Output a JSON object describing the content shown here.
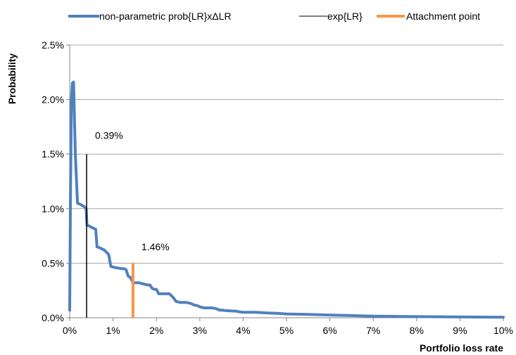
{
  "chart_data": {
    "type": "line",
    "xlabel": "Portfolio loss rate",
    "ylabel": "Probability",
    "xlim": [
      0,
      10
    ],
    "ylim": [
      0,
      2.5
    ],
    "x_ticks": [
      "0%",
      "1%",
      "2%",
      "3%",
      "4%",
      "5%",
      "6%",
      "7%",
      "8%",
      "9%",
      "10%"
    ],
    "y_ticks": [
      "0.0%",
      "0.5%",
      "1.0%",
      "1.5%",
      "2.0%",
      "2.5%"
    ],
    "grid": "horizontal",
    "legend_position": "top",
    "series": [
      {
        "name": "non-parametric prob{LR}xΔLR",
        "color": "#4f81bd",
        "points": [
          [
            0.0,
            0.07
          ],
          [
            0.02,
            1.2
          ],
          [
            0.04,
            2.0
          ],
          [
            0.06,
            2.15
          ],
          [
            0.09,
            2.16
          ],
          [
            0.13,
            1.5
          ],
          [
            0.18,
            1.05
          ],
          [
            0.24,
            1.04
          ],
          [
            0.33,
            1.02
          ],
          [
            0.38,
            1.0
          ],
          [
            0.4,
            0.85
          ],
          [
            0.45,
            0.84
          ],
          [
            0.5,
            0.83
          ],
          [
            0.55,
            0.82
          ],
          [
            0.6,
            0.81
          ],
          [
            0.63,
            0.65
          ],
          [
            0.7,
            0.64
          ],
          [
            0.8,
            0.62
          ],
          [
            0.85,
            0.6
          ],
          [
            0.9,
            0.58
          ],
          [
            0.95,
            0.47
          ],
          [
            1.05,
            0.46
          ],
          [
            1.2,
            0.45
          ],
          [
            1.25,
            0.45
          ],
          [
            1.3,
            0.44
          ],
          [
            1.35,
            0.38
          ],
          [
            1.4,
            0.37
          ],
          [
            1.45,
            0.33
          ],
          [
            1.5,
            0.32
          ],
          [
            1.6,
            0.32
          ],
          [
            1.7,
            0.31
          ],
          [
            1.8,
            0.3
          ],
          [
            1.85,
            0.3
          ],
          [
            1.9,
            0.27
          ],
          [
            1.95,
            0.26
          ],
          [
            2.0,
            0.26
          ],
          [
            2.05,
            0.22
          ],
          [
            2.15,
            0.22
          ],
          [
            2.25,
            0.22
          ],
          [
            2.3,
            0.22
          ],
          [
            2.35,
            0.2
          ],
          [
            2.4,
            0.18
          ],
          [
            2.45,
            0.15
          ],
          [
            2.55,
            0.14
          ],
          [
            2.7,
            0.14
          ],
          [
            2.8,
            0.13
          ],
          [
            2.85,
            0.12
          ],
          [
            2.95,
            0.11
          ],
          [
            3.0,
            0.1
          ],
          [
            3.1,
            0.09
          ],
          [
            3.25,
            0.09
          ],
          [
            3.3,
            0.09
          ],
          [
            3.4,
            0.08
          ],
          [
            3.45,
            0.07
          ],
          [
            3.5,
            0.07
          ],
          [
            3.6,
            0.065
          ],
          [
            3.85,
            0.06
          ],
          [
            3.9,
            0.055
          ],
          [
            4.0,
            0.05
          ],
          [
            4.3,
            0.05
          ],
          [
            4.5,
            0.045
          ],
          [
            4.8,
            0.04
          ],
          [
            5.0,
            0.035
          ],
          [
            5.5,
            0.03
          ],
          [
            6.0,
            0.025
          ],
          [
            6.5,
            0.02
          ],
          [
            7.0,
            0.015
          ],
          [
            8.0,
            0.01
          ],
          [
            9.0,
            0.007
          ],
          [
            10.0,
            0.005
          ]
        ]
      },
      {
        "name": "exp{LR}",
        "color": "#000000",
        "x": 0.39,
        "y_range": [
          0,
          1.5
        ]
      },
      {
        "name": "Attachment point",
        "color": "#f79646",
        "x": 1.46,
        "y_range": [
          0,
          0.5
        ]
      }
    ],
    "annotations": [
      {
        "text": "0.39%",
        "x": 0.39,
        "y": 1.64
      },
      {
        "text": "1.46%",
        "x": 1.46,
        "y": 0.62
      }
    ]
  }
}
